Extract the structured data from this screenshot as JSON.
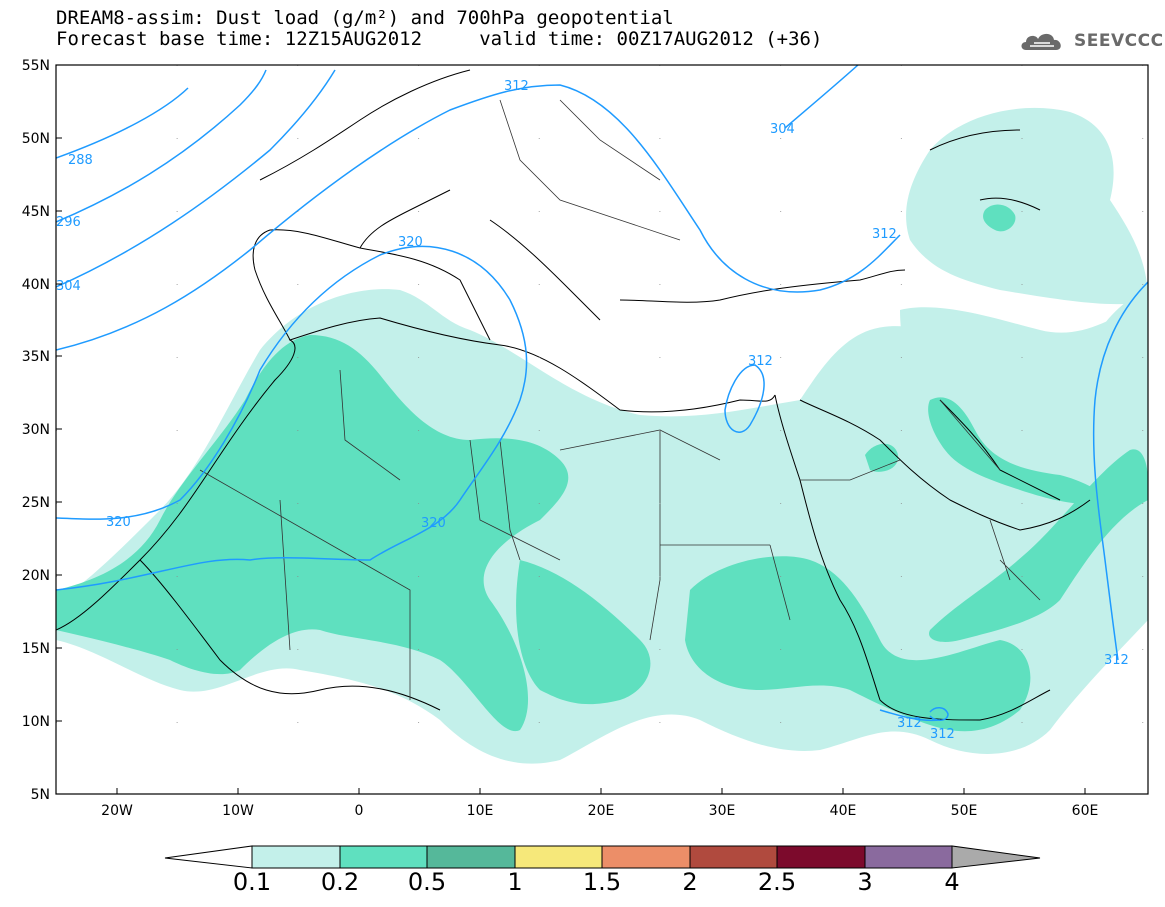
{
  "title": {
    "line1": "DREAM8-assim: Dust load (g/m²) and 700hPa geopotential",
    "line2": "Forecast base time: 12Z15AUG2012     valid time: 00Z17AUG2012 (+36)"
  },
  "logo": {
    "text": "SEEVCCC",
    "icon": "cloud-icon"
  },
  "map": {
    "lon_range": [
      -25,
      65
    ],
    "lat_range": [
      5,
      55
    ],
    "lat_ticks": [
      "55N",
      "50N",
      "45N",
      "40N",
      "35N",
      "30N",
      "25N",
      "20N",
      "15N",
      "10N",
      "5N"
    ],
    "lon_ticks": [
      "20W",
      "10W",
      "0",
      "10E",
      "20E",
      "30E",
      "40E",
      "50E",
      "60E"
    ],
    "field_colors": {
      "0.1-0.2": "#c3f0ea",
      "0.2-0.5": "#5fe0bf"
    },
    "contour_color": "#1f9bff",
    "contour_labels": [
      "312",
      "304",
      "288",
      "296",
      "304",
      "320",
      "312",
      "320",
      "320",
      "312",
      "312",
      "312",
      "312"
    ]
  },
  "colorbar": {
    "labels": [
      "0.1",
      "0.2",
      "0.5",
      "1",
      "1.5",
      "2",
      "2.5",
      "3",
      "4"
    ],
    "colors": [
      "#c3f0ea",
      "#5fe0bf",
      "#55b89a",
      "#f6e87a",
      "#ec8e68",
      "#b04a3e",
      "#7c0a2c",
      "#8a6a9e"
    ],
    "under_color": "#ffffff",
    "over_color": "#aaaaaa"
  }
}
